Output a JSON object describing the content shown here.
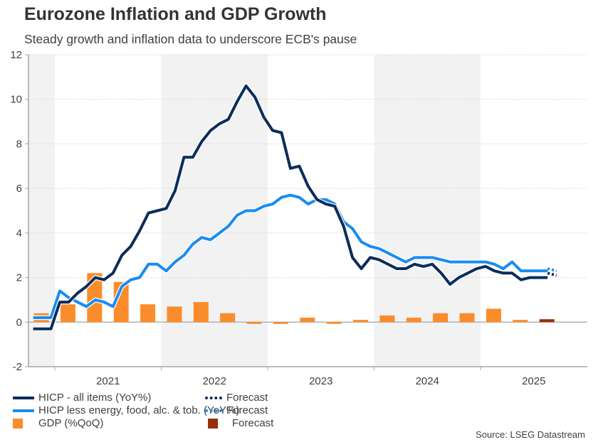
{
  "chart_data": {
    "type": "line",
    "title": "Eurozone Inflation and GDP Growth",
    "subtitle": "Steady growth and inflation data to underscore ECB's pause",
    "source": "Source: LSEG Datastream",
    "xlabel": "",
    "ylabel": "",
    "ylim": [
      -2,
      12
    ],
    "y_ticks": [
      -2,
      0,
      2,
      4,
      6,
      8,
      10,
      12
    ],
    "x_ticks": [
      "2021",
      "2022",
      "2023",
      "2024",
      "2025"
    ],
    "x_range_months": [
      "2020-10",
      "2025-09"
    ],
    "shaded_periods": [
      [
        "2020-10",
        "2021-01"
      ],
      [
        "2022-01",
        "2023-01"
      ],
      [
        "2024-01",
        "2025-01"
      ]
    ],
    "grid": true,
    "legend": {
      "placement": "bottom",
      "items": [
        {
          "label": "HICP - all items (YoY%)",
          "color": "#0b2d5b",
          "style": "line"
        },
        {
          "label": "HICP less energy, food, alc. & tob. (YoY%)",
          "color": "#1a8cf0",
          "style": "line"
        },
        {
          "label": "GDP (%QoQ)",
          "color": "#fb8c2c",
          "style": "bar"
        },
        {
          "label": "Forecast",
          "color": "#0b2d5b",
          "style": "dotted"
        },
        {
          "label": "Forecast",
          "color": "#1a8cf0",
          "style": "dotted"
        },
        {
          "label": "Forecast",
          "color": "#9a3007",
          "style": "bar"
        }
      ]
    },
    "months": [
      "2020-10",
      "2020-11",
      "2020-12",
      "2021-01",
      "2021-02",
      "2021-03",
      "2021-04",
      "2021-05",
      "2021-06",
      "2021-07",
      "2021-08",
      "2021-09",
      "2021-10",
      "2021-11",
      "2021-12",
      "2022-01",
      "2022-02",
      "2022-03",
      "2022-04",
      "2022-05",
      "2022-06",
      "2022-07",
      "2022-08",
      "2022-09",
      "2022-10",
      "2022-11",
      "2022-12",
      "2023-01",
      "2023-02",
      "2023-03",
      "2023-04",
      "2023-05",
      "2023-06",
      "2023-07",
      "2023-08",
      "2023-09",
      "2023-10",
      "2023-11",
      "2023-12",
      "2024-01",
      "2024-02",
      "2024-03",
      "2024-04",
      "2024-05",
      "2024-06",
      "2024-07",
      "2024-08",
      "2024-09",
      "2024-10",
      "2024-11",
      "2024-12",
      "2025-01",
      "2025-02",
      "2025-03",
      "2025-04",
      "2025-05",
      "2025-06",
      "2025-07",
      "2025-08"
    ],
    "series": [
      {
        "name": "HICP - all items (YoY%)",
        "color": "#0b2d5b",
        "values": [
          -0.3,
          -0.3,
          -0.3,
          0.9,
          0.9,
          1.3,
          1.6,
          2.0,
          1.9,
          2.2,
          3.0,
          3.4,
          4.1,
          4.9,
          5.0,
          5.1,
          5.9,
          7.4,
          7.4,
          8.1,
          8.6,
          8.9,
          9.1,
          9.9,
          10.6,
          10.1,
          9.2,
          8.6,
          8.5,
          6.9,
          7.0,
          6.1,
          5.5,
          5.3,
          5.2,
          4.3,
          2.9,
          2.4,
          2.9,
          2.8,
          2.6,
          2.4,
          2.4,
          2.6,
          2.5,
          2.6,
          2.2,
          1.7,
          2.0,
          2.2,
          2.4,
          2.5,
          2.3,
          2.2,
          2.2,
          1.9,
          2.0,
          2.0,
          2.0
        ],
        "forecast": {
          "months": [
            "2025-08",
            "2025-09"
          ],
          "values": [
            2.2,
            2.1
          ]
        }
      },
      {
        "name": "HICP less energy, food, alc. & tob. (YoY%)",
        "color": "#1a8cf0",
        "values": [
          0.2,
          0.2,
          0.2,
          1.4,
          1.1,
          0.9,
          0.7,
          1.0,
          0.9,
          0.7,
          1.6,
          1.9,
          2.0,
          2.6,
          2.6,
          2.3,
          2.7,
          3.0,
          3.5,
          3.8,
          3.7,
          4.0,
          4.3,
          4.8,
          5.0,
          5.0,
          5.2,
          5.3,
          5.6,
          5.7,
          5.6,
          5.3,
          5.5,
          5.5,
          5.3,
          4.5,
          4.2,
          3.6,
          3.4,
          3.3,
          3.1,
          2.9,
          2.7,
          2.9,
          2.9,
          2.9,
          2.8,
          2.7,
          2.7,
          2.7,
          2.7,
          2.7,
          2.6,
          2.4,
          2.7,
          2.3,
          2.3,
          2.3,
          2.3
        ],
        "forecast": {
          "months": [
            "2025-08",
            "2025-09"
          ],
          "values": [
            2.4,
            2.3
          ]
        }
      },
      {
        "name": "GDP (%QoQ)",
        "type": "bar",
        "color": "#fb8c2c",
        "quarters": [
          "2020-Q4",
          "2021-Q1",
          "2021-Q2",
          "2021-Q3",
          "2021-Q4",
          "2022-Q1",
          "2022-Q2",
          "2022-Q3",
          "2022-Q4",
          "2023-Q1",
          "2023-Q2",
          "2023-Q3",
          "2023-Q4",
          "2024-Q1",
          "2024-Q2",
          "2024-Q3",
          "2024-Q4",
          "2025-Q1",
          "2025-Q2"
        ],
        "values": [
          0.4,
          0.8,
          2.2,
          1.8,
          0.8,
          0.7,
          0.9,
          0.4,
          -0.05,
          -0.05,
          0.2,
          -0.05,
          0.1,
          0.3,
          0.2,
          0.4,
          0.4,
          0.6,
          0.1
        ],
        "forecast": {
          "quarters": [
            "2025-Q3"
          ],
          "values": [
            0.13
          ],
          "color": "#9a3007"
        }
      }
    ]
  }
}
